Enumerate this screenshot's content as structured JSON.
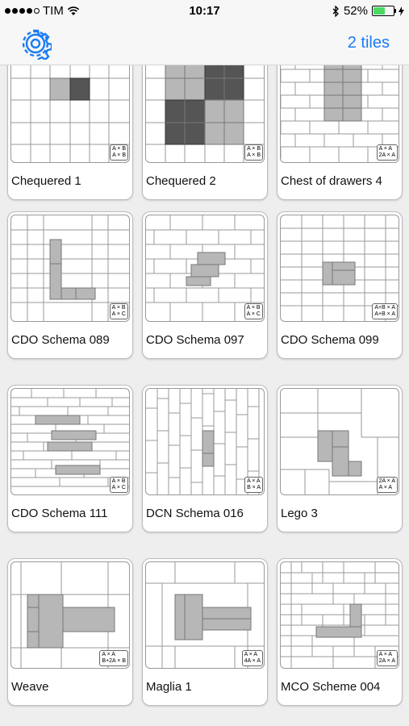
{
  "status_bar": {
    "carrier": "TIM",
    "time": "10:17",
    "battery": "52%",
    "signal_dots": [
      true,
      true,
      true,
      true,
      false
    ]
  },
  "nav": {
    "settings_icon": "gear-icon",
    "tiles_label": "2 tiles",
    "accent_color": "#1a7cf5"
  },
  "cards": [
    {
      "title": "Chequered 1",
      "legend": [
        "A × B",
        "A × B"
      ]
    },
    {
      "title": "Chequered 2",
      "legend": [
        "A × B",
        "A × B"
      ]
    },
    {
      "title": "Chest of drawers 4",
      "legend": [
        "A × A",
        "2A × A"
      ]
    },
    {
      "title": "CDO Schema 089",
      "legend": [
        "A × B",
        "A × C"
      ]
    },
    {
      "title": "CDO Schema 097",
      "legend": [
        "A × B",
        "A × C"
      ]
    },
    {
      "title": "CDO Schema 099",
      "legend": [
        "A+B × A",
        "A+B × A"
      ]
    },
    {
      "title": "CDO Schema 111",
      "legend": [
        "A × B",
        "A × C"
      ]
    },
    {
      "title": "DCN Schema 016",
      "legend": [
        "A × A",
        "B × A"
      ]
    },
    {
      "title": "Lego 3",
      "legend": [
        "2A × A",
        "A × A"
      ]
    },
    {
      "title": "Weave",
      "legend": [
        "A × A",
        "B+2A × B"
      ]
    },
    {
      "title": "Maglia 1",
      "legend": [
        "A × A",
        "4A × A"
      ]
    },
    {
      "title": "MCO Scheme 004",
      "legend": [
        "A × A",
        "2A × A"
      ]
    }
  ]
}
